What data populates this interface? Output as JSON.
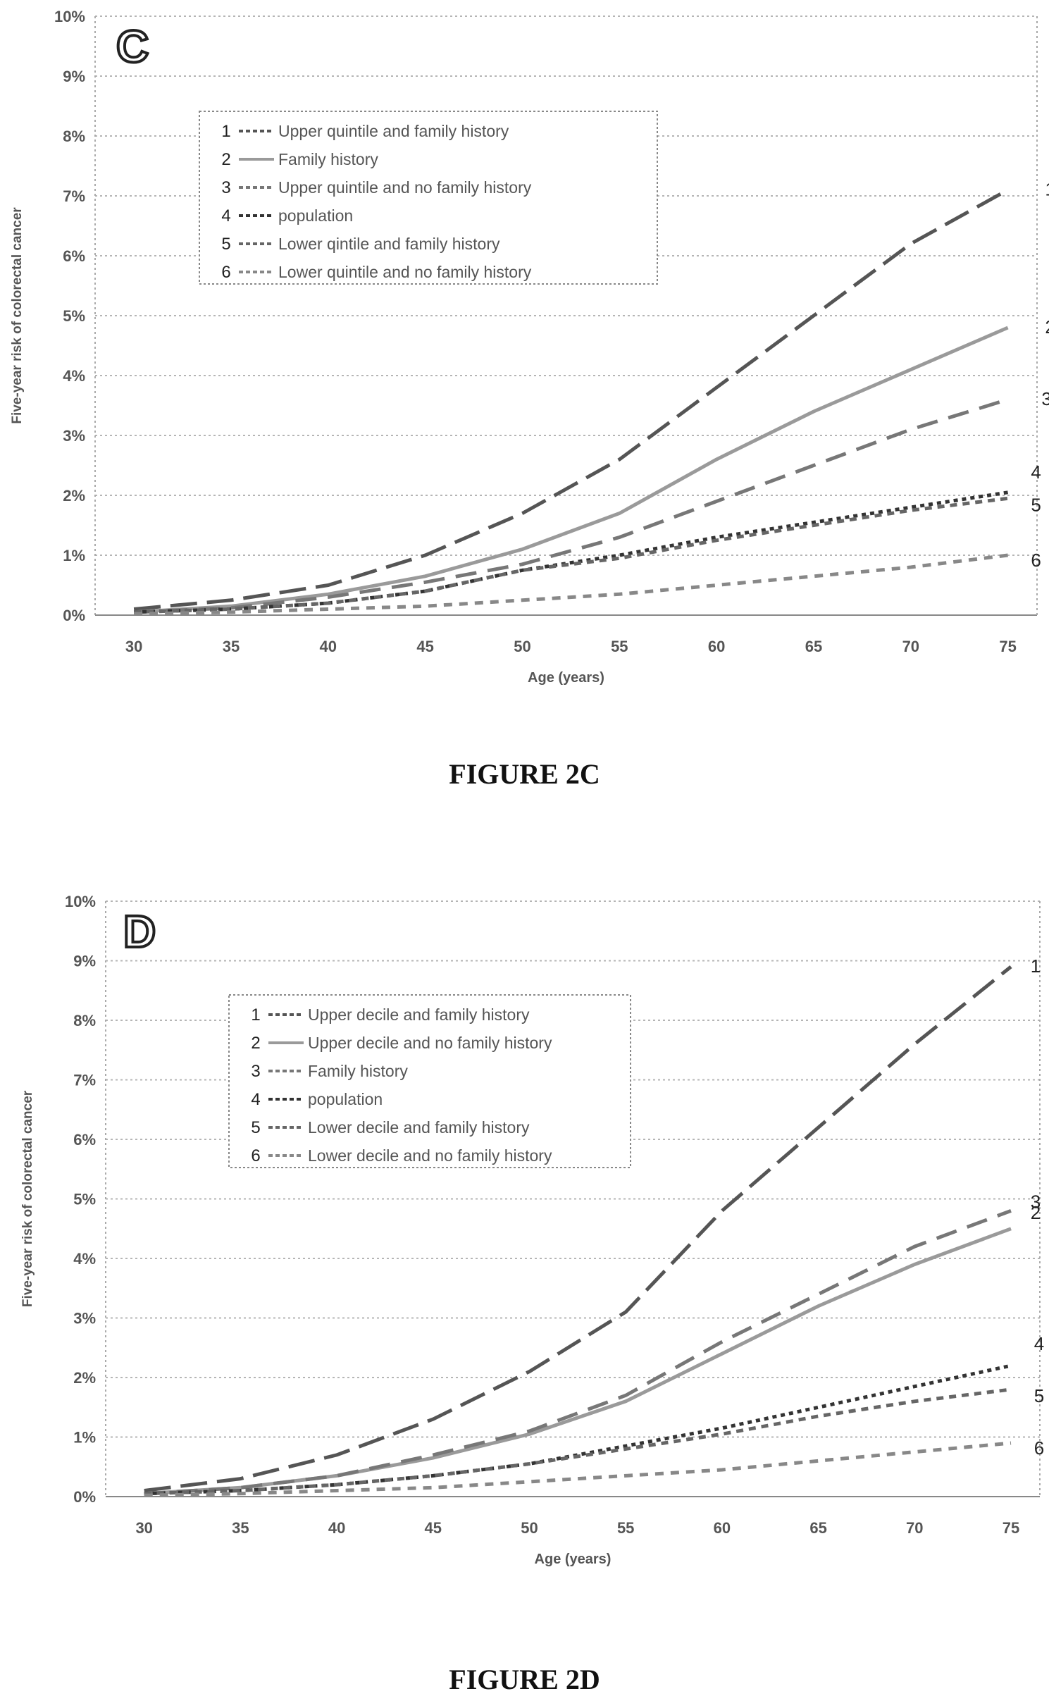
{
  "chart_data": [
    {
      "type": "line",
      "panel_letter": "C",
      "figure_caption": "FIGURE 2C",
      "xlabel": "Age (years)",
      "ylabel": "Five-year risk of colorectal cancer",
      "xlim": [
        28,
        76.5
      ],
      "ylim": [
        0,
        10
      ],
      "x_ticks": [
        "30",
        "35",
        "40",
        "45",
        "50",
        "55",
        "60",
        "65",
        "70",
        "75"
      ],
      "y_ticks": [
        "0%",
        "1%",
        "2%",
        "3%",
        "4%",
        "5%",
        "6%",
        "7%",
        "8%",
        "9%",
        "10%"
      ],
      "grid": true,
      "legend_position": "top-center",
      "series": [
        {
          "num": "1",
          "name": "Upper quintile and family history",
          "x": [
            30,
            35,
            40,
            45,
            50,
            55,
            60,
            65,
            70,
            75
          ],
          "y": [
            0.1,
            0.25,
            0.5,
            1.0,
            1.7,
            2.6,
            3.8,
            5.0,
            6.2,
            7.1
          ]
        },
        {
          "num": "2",
          "name": "Family history",
          "x": [
            30,
            35,
            40,
            45,
            50,
            55,
            60,
            65,
            70,
            75
          ],
          "y": [
            0.05,
            0.15,
            0.35,
            0.65,
            1.1,
            1.7,
            2.6,
            3.4,
            4.1,
            4.8
          ]
        },
        {
          "num": "3",
          "name": "Upper quintile and no family history",
          "x": [
            30,
            35,
            40,
            45,
            50,
            55,
            60,
            65,
            70,
            75
          ],
          "y": [
            0.05,
            0.12,
            0.3,
            0.55,
            0.85,
            1.3,
            1.9,
            2.5,
            3.1,
            3.6
          ]
        },
        {
          "num": "4",
          "name": "population",
          "x": [
            30,
            35,
            40,
            45,
            50,
            55,
            60,
            65,
            70,
            75
          ],
          "y": [
            0.05,
            0.1,
            0.2,
            0.4,
            0.75,
            1.0,
            1.3,
            1.55,
            1.8,
            2.05
          ]
        },
        {
          "num": "5",
          "name": "Lower qintile and family history",
          "x": [
            30,
            35,
            40,
            45,
            50,
            55,
            60,
            65,
            70,
            75
          ],
          "y": [
            0.05,
            0.1,
            0.2,
            0.4,
            0.75,
            0.95,
            1.25,
            1.5,
            1.75,
            1.95
          ]
        },
        {
          "num": "6",
          "name": "Lower quintile and no family history",
          "x": [
            30,
            35,
            40,
            45,
            50,
            55,
            60,
            65,
            70,
            75
          ],
          "y": [
            0.02,
            0.05,
            0.1,
            0.15,
            0.25,
            0.35,
            0.5,
            0.65,
            0.8,
            1.0
          ]
        }
      ]
    },
    {
      "type": "line",
      "panel_letter": "D",
      "figure_caption": "FIGURE 2D",
      "xlabel": "Age (years)",
      "ylabel": "Five-year risk of colorectal cancer",
      "xlim": [
        28,
        76.5
      ],
      "ylim": [
        0,
        10
      ],
      "x_ticks": [
        "30",
        "35",
        "40",
        "45",
        "50",
        "55",
        "60",
        "65",
        "70",
        "75"
      ],
      "y_ticks": [
        "0%",
        "1%",
        "2%",
        "3%",
        "4%",
        "5%",
        "6%",
        "7%",
        "8%",
        "9%",
        "10%"
      ],
      "grid": true,
      "legend_position": "top-center",
      "series": [
        {
          "num": "1",
          "name": "Upper decile and family history",
          "x": [
            30,
            35,
            40,
            45,
            50,
            55,
            60,
            65,
            70,
            75
          ],
          "y": [
            0.1,
            0.3,
            0.7,
            1.3,
            2.1,
            3.1,
            4.8,
            6.2,
            7.6,
            8.9
          ]
        },
        {
          "num": "2",
          "name": "Upper decile and no family history",
          "x": [
            30,
            35,
            40,
            45,
            50,
            55,
            60,
            65,
            70,
            75
          ],
          "y": [
            0.05,
            0.15,
            0.35,
            0.65,
            1.05,
            1.6,
            2.4,
            3.2,
            3.9,
            4.5
          ]
        },
        {
          "num": "3",
          "name": "Family history",
          "x": [
            30,
            35,
            40,
            45,
            50,
            55,
            60,
            65,
            70,
            75
          ],
          "y": [
            0.05,
            0.15,
            0.35,
            0.7,
            1.1,
            1.7,
            2.6,
            3.4,
            4.2,
            4.8
          ]
        },
        {
          "num": "4",
          "name": "population",
          "x": [
            30,
            35,
            40,
            45,
            50,
            55,
            60,
            65,
            70,
            75
          ],
          "y": [
            0.05,
            0.1,
            0.2,
            0.35,
            0.55,
            0.85,
            1.15,
            1.5,
            1.85,
            2.2
          ]
        },
        {
          "num": "5",
          "name": "Lower decile and family history",
          "x": [
            30,
            35,
            40,
            45,
            50,
            55,
            60,
            65,
            70,
            75
          ],
          "y": [
            0.05,
            0.1,
            0.2,
            0.35,
            0.55,
            0.8,
            1.05,
            1.35,
            1.6,
            1.8
          ]
        },
        {
          "num": "6",
          "name": "Lower decile and no family history",
          "x": [
            30,
            35,
            40,
            45,
            50,
            55,
            60,
            65,
            70,
            75
          ],
          "y": [
            0.02,
            0.05,
            0.1,
            0.15,
            0.25,
            0.35,
            0.45,
            0.6,
            0.75,
            0.9
          ]
        }
      ]
    }
  ]
}
